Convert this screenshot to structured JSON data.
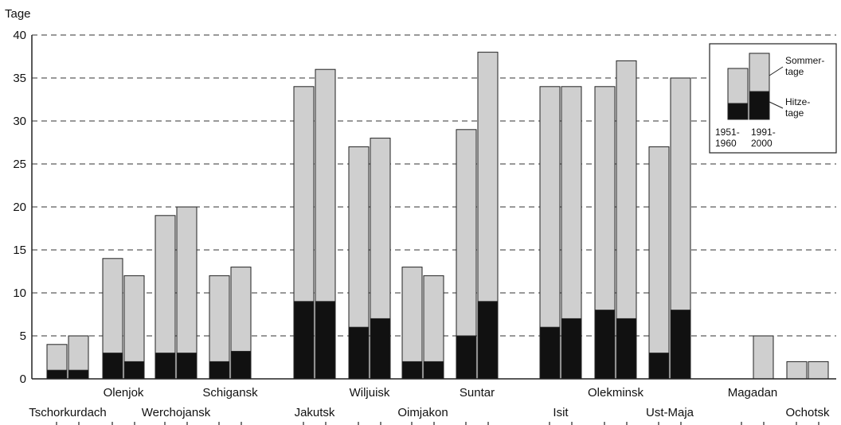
{
  "chart_data": {
    "type": "bar",
    "ylabel": "Tage",
    "ylim": [
      0,
      40
    ],
    "yticks": [
      0,
      5,
      10,
      15,
      20,
      25,
      30,
      35,
      40
    ],
    "grid": "dashed horizontal",
    "colors": {
      "sommertage": "#cfcfcf",
      "hitzetage": "#111111",
      "edge": "#222222"
    },
    "categories": [
      "Tschorkurdach",
      "Olenjok",
      "Werchojansk",
      "Schigansk",
      "Jakutsk",
      "Wiljuisk",
      "Oimjakon",
      "Suntar",
      "Isit",
      "Olekminsk",
      "Ust-Maja",
      "Magadan",
      "Ochotsk"
    ],
    "periods": [
      "1951-1960",
      "1991-2000"
    ],
    "series": [
      {
        "name": "Sommertage 1951-1960",
        "values": [
          4,
          14,
          19,
          12,
          34,
          27,
          13,
          29,
          34,
          34,
          27,
          null,
          2
        ]
      },
      {
        "name": "Hitzetage 1951-1960",
        "values": [
          1,
          3,
          3,
          2,
          9,
          6,
          2,
          5,
          6,
          8,
          3,
          null,
          0
        ]
      },
      {
        "name": "Sommertage 1991-2000",
        "values": [
          5,
          12,
          20,
          13,
          36,
          28,
          12,
          38,
          34,
          37,
          35,
          5,
          2
        ]
      },
      {
        "name": "Hitzetage 1991-2000",
        "values": [
          1,
          2,
          3,
          3.2,
          9,
          7,
          2,
          9,
          7,
          7,
          8,
          0,
          0
        ]
      }
    ],
    "legend": {
      "position": "top-right",
      "sommer_label_line1": "Sommer-",
      "sommer_label_line2": "tage",
      "hitze_label_line1": "Hitze-",
      "hitze_label_line2": "tage",
      "period1_line1": "1951-",
      "period1_line2": "1960",
      "period2_line1": "1991-",
      "period2_line2": "2000"
    }
  }
}
